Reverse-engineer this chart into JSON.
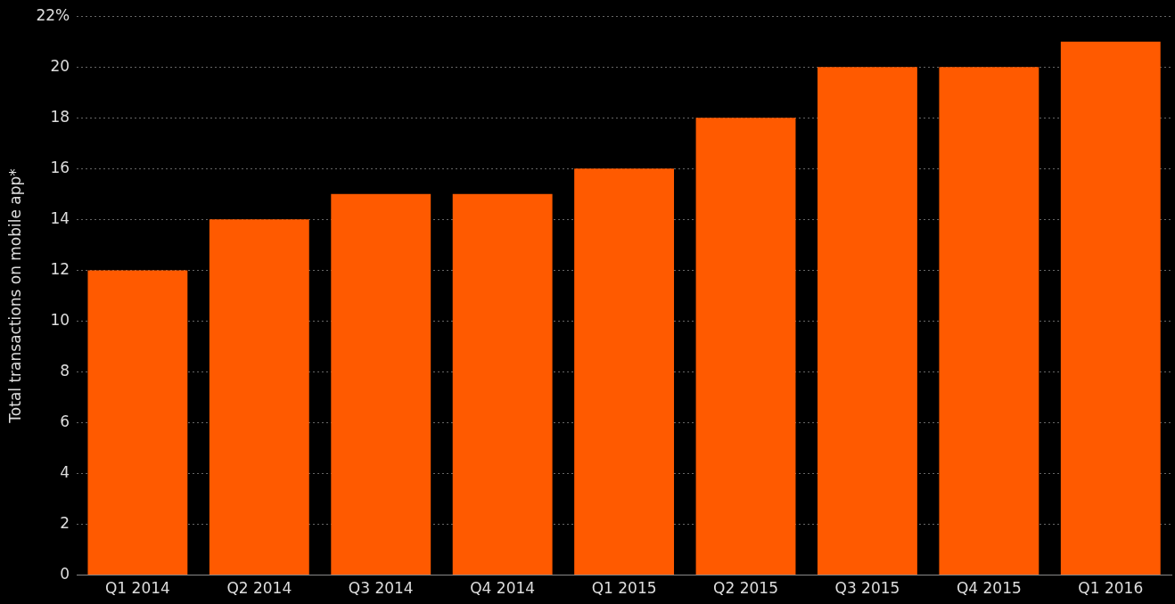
{
  "chart_data": {
    "type": "bar",
    "ylabel": "Total transactions on mobile app*",
    "categories": [
      "Q1 2014",
      "Q2 2014",
      "Q3 2014",
      "Q4 2014",
      "Q1 2015",
      "Q2 2015",
      "Q3 2015",
      "Q4 2015",
      "Q1 2016"
    ],
    "values": [
      12,
      14,
      15,
      15,
      16,
      18,
      20,
      20,
      21
    ],
    "color": "#ff5a00",
    "ylim": [
      0,
      22
    ],
    "yticks": [
      0,
      2,
      4,
      6,
      8,
      10,
      12,
      14,
      16,
      18,
      20,
      {
        "value": 22,
        "label": "22%"
      }
    ],
    "grid": "y",
    "legend": false
  }
}
